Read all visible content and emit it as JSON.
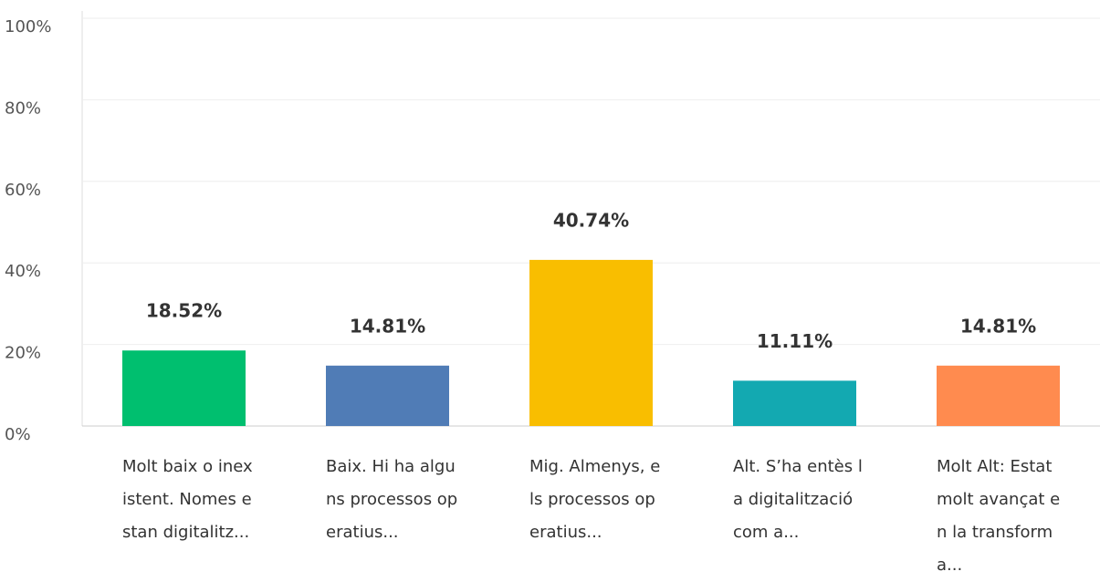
{
  "chart_data": {
    "type": "bar",
    "categories": [
      "Molt baix o inexistent. Nomes estan digitalitz...",
      "Baix. Hi ha alguns processos operatius...",
      "Mig. Almenys, els processos operatius...",
      "Alt. S’ha entès la digitalització com a...",
      "Molt Alt: Estat molt avançat en la transforma..."
    ],
    "values": [
      18.52,
      14.81,
      40.74,
      11.11,
      14.81
    ],
    "value_labels": [
      "18.52%",
      "14.81%",
      "40.74%",
      "11.11%",
      "14.81%"
    ],
    "colors": [
      "#00bf6f",
      "#507cb6",
      "#f9be00",
      "#13a9b1",
      "#ff8b4f"
    ],
    "ylim": [
      0,
      100
    ],
    "yticks": [
      {
        "value": 0,
        "label": "0%"
      },
      {
        "value": 20,
        "label": "20%"
      },
      {
        "value": 40,
        "label": "40%"
      },
      {
        "value": 60,
        "label": "60%"
      },
      {
        "value": 80,
        "label": "80%"
      },
      {
        "value": 100,
        "label": "100%"
      }
    ],
    "grid": true
  }
}
